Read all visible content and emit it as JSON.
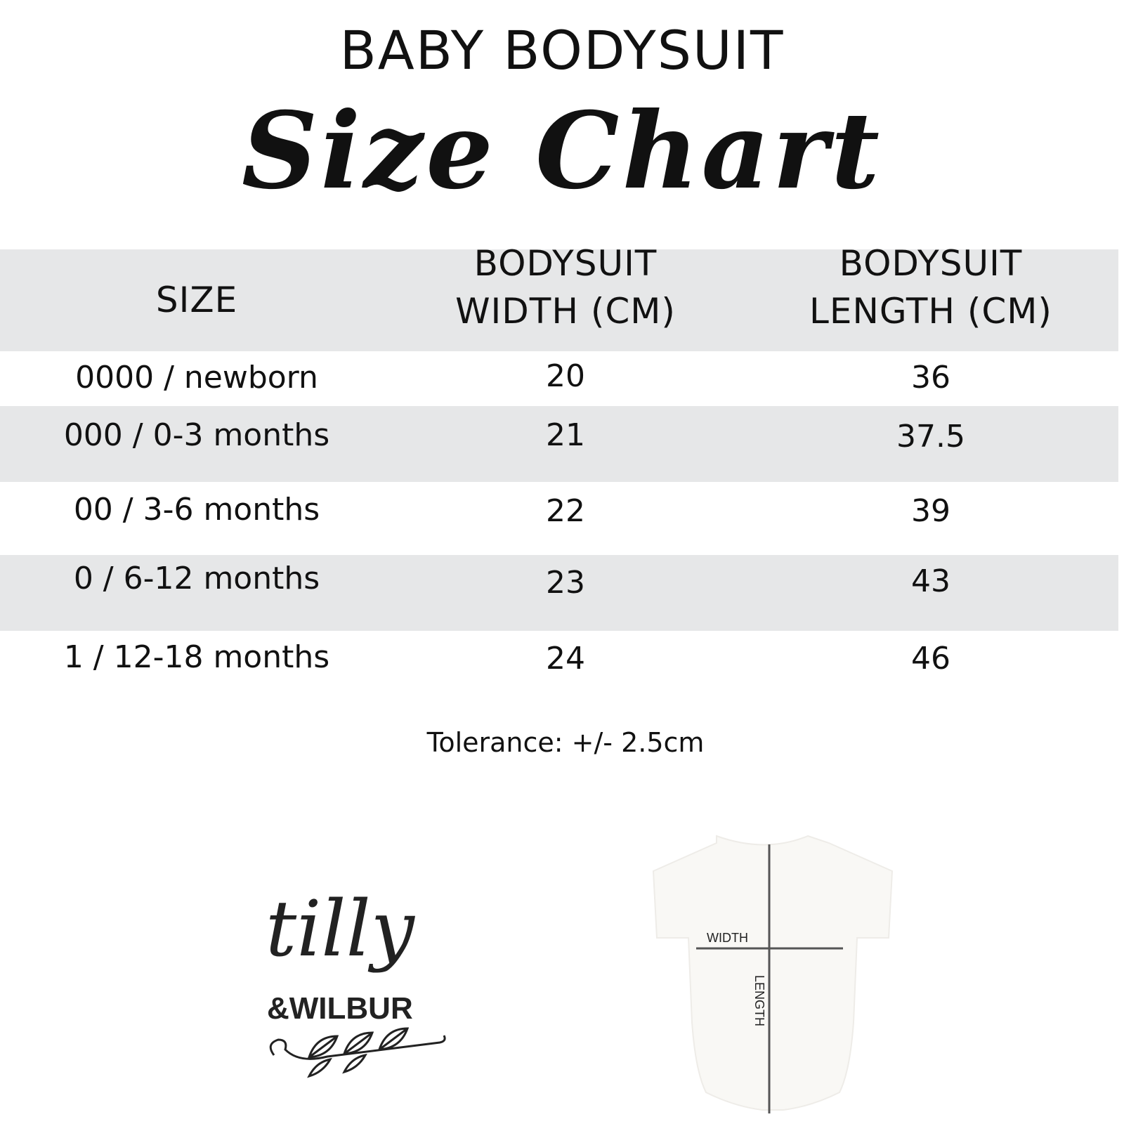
{
  "header": {
    "subtitle": "BABY BODYSUIT",
    "title": "Size Chart"
  },
  "table": {
    "columns": [
      "SIZE",
      "BODYSUIT\nWIDTH (CM)",
      "BODYSUIT\nLENGTH (CM)"
    ],
    "columns_lines": [
      [
        "SIZE"
      ],
      [
        "BODYSUIT",
        "WIDTH (CM)"
      ],
      [
        "BODYSUIT",
        "LENGTH (CM)"
      ]
    ],
    "rows": [
      [
        "0000 / newborn",
        "20",
        "36"
      ],
      [
        "000 / 0-3 months",
        "21",
        "37.5"
      ],
      [
        "00 / 3-6 months",
        "22",
        "39"
      ],
      [
        "0 / 6-12 months",
        "23",
        "43"
      ],
      [
        "1 / 12-18 months",
        "24",
        "46"
      ]
    ]
  },
  "tolerance": "Tolerance: +/- 2.5cm",
  "logo": {
    "text_main": "tilly",
    "text_sub": "&WILBUR"
  },
  "diagram": {
    "width_label": "WIDTH",
    "length_label": "LENGTH"
  },
  "colors": {
    "band": "#e6e7e8",
    "text": "#111111",
    "measure_line": "#555555"
  }
}
